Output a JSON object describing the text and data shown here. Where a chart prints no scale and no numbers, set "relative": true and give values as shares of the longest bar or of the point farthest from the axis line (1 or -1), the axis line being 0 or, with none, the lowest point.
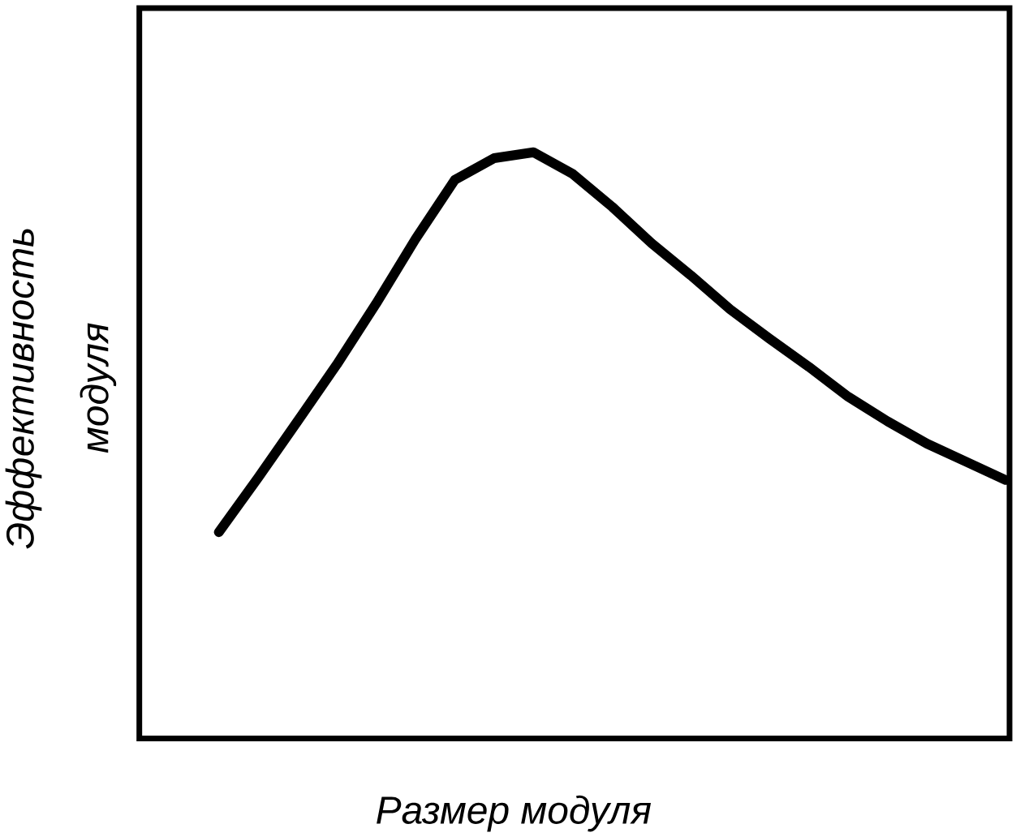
{
  "chart_data": {
    "type": "line",
    "relative": true,
    "xlabel": "Размер модуля",
    "ylabel": "Эффективность модуля",
    "categories": [
      null,
      null,
      null,
      null,
      null,
      null,
      null,
      null,
      null,
      null,
      null,
      null,
      null,
      null,
      null,
      null,
      null,
      null,
      null,
      null,
      null
    ],
    "values": [
      0.352,
      0.445,
      0.541,
      0.638,
      0.742,
      0.852,
      0.953,
      0.99,
      1.0,
      0.963,
      0.907,
      0.845,
      0.79,
      0.732,
      0.682,
      0.634,
      0.583,
      0.541,
      0.503,
      0.472,
      0.441
    ],
    "color": "#000000",
    "line_style": "solid",
    "marker": "none"
  }
}
